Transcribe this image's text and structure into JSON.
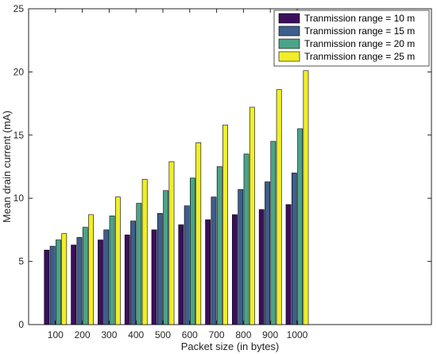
{
  "chart_data": {
    "type": "bar",
    "xlabel": "Packet size (in bytes)",
    "ylabel": "Mean drain current (mA)",
    "categories": [
      "100",
      "200",
      "300",
      "400",
      "500",
      "600",
      "700",
      "800",
      "900",
      "1000"
    ],
    "ylim": [
      0,
      25
    ],
    "yticks": [
      0,
      5,
      10,
      15,
      20,
      25
    ],
    "xlim": [
      0,
      1500
    ],
    "grid": false,
    "legend_position": "top-right",
    "series": [
      {
        "name": "Tranmission range = 10 m",
        "color": "#3b0f5c",
        "values": [
          5.9,
          6.3,
          6.7,
          7.1,
          7.5,
          7.9,
          8.3,
          8.7,
          9.1,
          9.5
        ]
      },
      {
        "name": "Tranmission range = 15 m",
        "color": "#3d5e8c",
        "values": [
          6.2,
          6.9,
          7.5,
          8.2,
          8.8,
          9.4,
          10.1,
          10.7,
          11.3,
          12.0
        ]
      },
      {
        "name": "Tranmission range = 20 m",
        "color": "#4aa487",
        "values": [
          6.7,
          7.7,
          8.6,
          9.6,
          10.6,
          11.6,
          12.5,
          13.5,
          14.5,
          15.5
        ]
      },
      {
        "name": "Tranmission range = 25 m",
        "color": "#f0ee2a",
        "values": [
          7.2,
          8.7,
          10.1,
          11.5,
          12.9,
          14.4,
          15.8,
          17.2,
          18.6,
          20.1
        ]
      }
    ]
  }
}
